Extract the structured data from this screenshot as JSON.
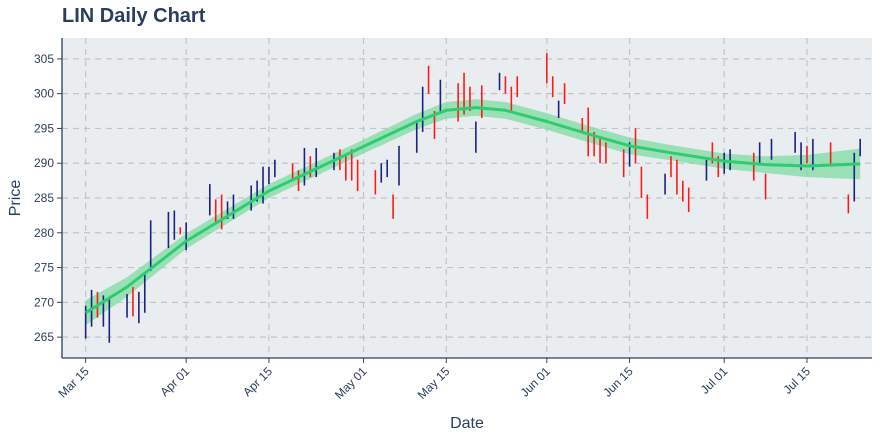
{
  "chart_data": {
    "type": "ohlc",
    "title": "LIN Daily Chart",
    "xlabel": "Date",
    "ylabel": "Price",
    "xlim": [
      "2021-03-11",
      "2021-07-26"
    ],
    "ylim": [
      262,
      308
    ],
    "grid": true,
    "legend": "none",
    "y_ticks": [
      265,
      270,
      275,
      280,
      285,
      290,
      295,
      300,
      305
    ],
    "x_ticks": [
      {
        "date": "2021-03-15",
        "label": "Mar 15"
      },
      {
        "date": "2021-04-01",
        "label": "Apr 01"
      },
      {
        "date": "2021-04-15",
        "label": "Apr 15"
      },
      {
        "date": "2021-05-01",
        "label": "May 01"
      },
      {
        "date": "2021-05-15",
        "label": "May 15"
      },
      {
        "date": "2021-06-01",
        "label": "Jun 01"
      },
      {
        "date": "2021-06-15",
        "label": "Jun 15"
      },
      {
        "date": "2021-07-01",
        "label": "Jul 01"
      },
      {
        "date": "2021-07-15",
        "label": "Jul 15"
      }
    ],
    "colors": {
      "up": "#1a237e",
      "down": "#ff1a1a",
      "trend": "#2ecc71",
      "band": "#7ddba4",
      "plot_bg": "#e9edf0",
      "grid": "#bfc5ca",
      "axis_text": "#2a3f5f"
    },
    "bars": [
      {
        "date": "2021-03-15",
        "low": 264.8,
        "high": 269.5,
        "dir": "up"
      },
      {
        "date": "2021-03-16",
        "low": 266.5,
        "high": 271.8,
        "dir": "up"
      },
      {
        "date": "2021-03-17",
        "low": 267.8,
        "high": 271.5,
        "dir": "down"
      },
      {
        "date": "2021-03-18",
        "low": 266.5,
        "high": 271.0,
        "dir": "up"
      },
      {
        "date": "2021-03-19",
        "low": 264.2,
        "high": 270.5,
        "dir": "up"
      },
      {
        "date": "2021-03-22",
        "low": 267.8,
        "high": 271.2,
        "dir": "up"
      },
      {
        "date": "2021-03-23",
        "low": 268.0,
        "high": 272.2,
        "dir": "down"
      },
      {
        "date": "2021-03-24",
        "low": 267.0,
        "high": 271.5,
        "dir": "up"
      },
      {
        "date": "2021-03-25",
        "low": 268.5,
        "high": 274.0,
        "dir": "up"
      },
      {
        "date": "2021-03-26",
        "low": 274.5,
        "high": 281.8,
        "dir": "up"
      },
      {
        "date": "2021-03-29",
        "low": 277.8,
        "high": 283.0,
        "dir": "up"
      },
      {
        "date": "2021-03-30",
        "low": 279.0,
        "high": 283.2,
        "dir": "up"
      },
      {
        "date": "2021-03-31",
        "low": 279.8,
        "high": 280.8,
        "dir": "down"
      },
      {
        "date": "2021-04-01",
        "low": 277.5,
        "high": 281.5,
        "dir": "up"
      },
      {
        "date": "2021-04-05",
        "low": 282.5,
        "high": 287.0,
        "dir": "up"
      },
      {
        "date": "2021-04-06",
        "low": 281.2,
        "high": 284.8,
        "dir": "down"
      },
      {
        "date": "2021-04-07",
        "low": 280.5,
        "high": 285.5,
        "dir": "down"
      },
      {
        "date": "2021-04-08",
        "low": 282.0,
        "high": 284.5,
        "dir": "up"
      },
      {
        "date": "2021-04-09",
        "low": 282.0,
        "high": 285.5,
        "dir": "up"
      },
      {
        "date": "2021-04-12",
        "low": 283.2,
        "high": 286.8,
        "dir": "up"
      },
      {
        "date": "2021-04-13",
        "low": 284.5,
        "high": 287.5,
        "dir": "up"
      },
      {
        "date": "2021-04-14",
        "low": 284.2,
        "high": 289.5,
        "dir": "up"
      },
      {
        "date": "2021-04-15",
        "low": 287.0,
        "high": 289.5,
        "dir": "up"
      },
      {
        "date": "2021-04-16",
        "low": 288.0,
        "high": 290.5,
        "dir": "up"
      },
      {
        "date": "2021-04-19",
        "low": 287.5,
        "high": 290.0,
        "dir": "down"
      },
      {
        "date": "2021-04-20",
        "low": 286.0,
        "high": 289.0,
        "dir": "down"
      },
      {
        "date": "2021-04-21",
        "low": 286.8,
        "high": 292.2,
        "dir": "up"
      },
      {
        "date": "2021-04-22",
        "low": 288.0,
        "high": 291.0,
        "dir": "down"
      },
      {
        "date": "2021-04-23",
        "low": 288.0,
        "high": 292.2,
        "dir": "up"
      },
      {
        "date": "2021-04-26",
        "low": 289.0,
        "high": 291.5,
        "dir": "up"
      },
      {
        "date": "2021-04-27",
        "low": 289.0,
        "high": 292.0,
        "dir": "down"
      },
      {
        "date": "2021-04-28",
        "low": 287.5,
        "high": 291.0,
        "dir": "down"
      },
      {
        "date": "2021-04-29",
        "low": 287.5,
        "high": 292.0,
        "dir": "down"
      },
      {
        "date": "2021-04-30",
        "low": 286.0,
        "high": 290.5,
        "dir": "down"
      },
      {
        "date": "2021-05-03",
        "low": 285.5,
        "high": 289.0,
        "dir": "down"
      },
      {
        "date": "2021-05-04",
        "low": 287.2,
        "high": 290.0,
        "dir": "up"
      },
      {
        "date": "2021-05-05",
        "low": 288.0,
        "high": 290.5,
        "dir": "up"
      },
      {
        "date": "2021-05-06",
        "low": 282.0,
        "high": 285.5,
        "dir": "down"
      },
      {
        "date": "2021-05-07",
        "low": 286.8,
        "high": 292.5,
        "dir": "up"
      },
      {
        "date": "2021-05-10",
        "low": 291.5,
        "high": 296.2,
        "dir": "up"
      },
      {
        "date": "2021-05-11",
        "low": 294.5,
        "high": 301.0,
        "dir": "up"
      },
      {
        "date": "2021-05-12",
        "low": 300.0,
        "high": 304.0,
        "dir": "down"
      },
      {
        "date": "2021-05-13",
        "low": 293.5,
        "high": 297.5,
        "dir": "down"
      },
      {
        "date": "2021-05-14",
        "low": 297.5,
        "high": 302.0,
        "dir": "up"
      },
      {
        "date": "2021-05-17",
        "low": 296.0,
        "high": 301.5,
        "dir": "down"
      },
      {
        "date": "2021-05-18",
        "low": 297.0,
        "high": 303.0,
        "dir": "down"
      },
      {
        "date": "2021-05-19",
        "low": 297.5,
        "high": 301.0,
        "dir": "down"
      },
      {
        "date": "2021-05-20",
        "low": 291.5,
        "high": 296.0,
        "dir": "up"
      },
      {
        "date": "2021-05-21",
        "low": 296.5,
        "high": 301.2,
        "dir": "down"
      },
      {
        "date": "2021-05-24",
        "low": 300.5,
        "high": 303.0,
        "dir": "up"
      },
      {
        "date": "2021-05-25",
        "low": 300.0,
        "high": 302.5,
        "dir": "down"
      },
      {
        "date": "2021-05-26",
        "low": 297.5,
        "high": 301.0,
        "dir": "down"
      },
      {
        "date": "2021-05-27",
        "low": 299.5,
        "high": 302.5,
        "dir": "down"
      },
      {
        "date": "2021-06-01",
        "low": 301.5,
        "high": 305.8,
        "dir": "down"
      },
      {
        "date": "2021-06-02",
        "low": 299.5,
        "high": 302.5,
        "dir": "down"
      },
      {
        "date": "2021-06-03",
        "low": 296.5,
        "high": 299.0,
        "dir": "up"
      },
      {
        "date": "2021-06-04",
        "low": 298.5,
        "high": 301.5,
        "dir": "down"
      },
      {
        "date": "2021-06-07",
        "low": 294.5,
        "high": 296.5,
        "dir": "down"
      },
      {
        "date": "2021-06-08",
        "low": 291.0,
        "high": 298.0,
        "dir": "down"
      },
      {
        "date": "2021-06-09",
        "low": 291.0,
        "high": 294.5,
        "dir": "down"
      },
      {
        "date": "2021-06-10",
        "low": 290.0,
        "high": 293.5,
        "dir": "down"
      },
      {
        "date": "2021-06-11",
        "low": 290.0,
        "high": 293.0,
        "dir": "down"
      },
      {
        "date": "2021-06-14",
        "low": 288.0,
        "high": 292.0,
        "dir": "down"
      },
      {
        "date": "2021-06-15",
        "low": 289.5,
        "high": 293.0,
        "dir": "up"
      },
      {
        "date": "2021-06-16",
        "low": 290.0,
        "high": 295.0,
        "dir": "down"
      },
      {
        "date": "2021-06-17",
        "low": 285.0,
        "high": 289.5,
        "dir": "down"
      },
      {
        "date": "2021-06-18",
        "low": 282.0,
        "high": 285.5,
        "dir": "down"
      },
      {
        "date": "2021-06-21",
        "low": 285.5,
        "high": 288.5,
        "dir": "up"
      },
      {
        "date": "2021-06-22",
        "low": 288.0,
        "high": 291.0,
        "dir": "down"
      },
      {
        "date": "2021-06-23",
        "low": 285.5,
        "high": 290.5,
        "dir": "down"
      },
      {
        "date": "2021-06-24",
        "low": 284.5,
        "high": 287.5,
        "dir": "down"
      },
      {
        "date": "2021-06-25",
        "low": 283.0,
        "high": 286.5,
        "dir": "down"
      },
      {
        "date": "2021-06-28",
        "low": 287.5,
        "high": 290.5,
        "dir": "up"
      },
      {
        "date": "2021-06-29",
        "low": 290.0,
        "high": 293.0,
        "dir": "down"
      },
      {
        "date": "2021-06-30",
        "low": 288.0,
        "high": 291.0,
        "dir": "down"
      },
      {
        "date": "2021-07-01",
        "low": 288.5,
        "high": 291.5,
        "dir": "up"
      },
      {
        "date": "2021-07-02",
        "low": 289.0,
        "high": 292.0,
        "dir": "up"
      },
      {
        "date": "2021-07-06",
        "low": 287.5,
        "high": 291.5,
        "dir": "down"
      },
      {
        "date": "2021-07-07",
        "low": 290.0,
        "high": 293.0,
        "dir": "up"
      },
      {
        "date": "2021-07-08",
        "low": 284.8,
        "high": 288.5,
        "dir": "down"
      },
      {
        "date": "2021-07-09",
        "low": 290.5,
        "high": 293.5,
        "dir": "up"
      },
      {
        "date": "2021-07-13",
        "low": 291.5,
        "high": 294.5,
        "dir": "up"
      },
      {
        "date": "2021-07-14",
        "low": 289.0,
        "high": 293.0,
        "dir": "up"
      },
      {
        "date": "2021-07-15",
        "low": 290.0,
        "high": 292.5,
        "dir": "down"
      },
      {
        "date": "2021-07-16",
        "low": 289.0,
        "high": 293.5,
        "dir": "up"
      },
      {
        "date": "2021-07-19",
        "low": 289.5,
        "high": 293.0,
        "dir": "down"
      },
      {
        "date": "2021-07-22",
        "low": 282.8,
        "high": 285.5,
        "dir": "down"
      },
      {
        "date": "2021-07-23",
        "low": 284.5,
        "high": 291.5,
        "dir": "up"
      },
      {
        "date": "2021-07-24",
        "low": 291.0,
        "high": 293.5,
        "dir": "up"
      }
    ],
    "trend": [
      {
        "date": "2021-03-15",
        "y": 268.5,
        "band": 1.8
      },
      {
        "date": "2021-03-22",
        "y": 272.2,
        "band": 1.4
      },
      {
        "date": "2021-04-01",
        "y": 278.8,
        "band": 1.1
      },
      {
        "date": "2021-04-15",
        "y": 286.0,
        "band": 1.0
      },
      {
        "date": "2021-05-01",
        "y": 292.4,
        "band": 1.0
      },
      {
        "date": "2021-05-10",
        "y": 296.0,
        "band": 1.1
      },
      {
        "date": "2021-05-15",
        "y": 297.6,
        "band": 1.2
      },
      {
        "date": "2021-05-20",
        "y": 298.0,
        "band": 1.2
      },
      {
        "date": "2021-05-25",
        "y": 297.6,
        "band": 1.2
      },
      {
        "date": "2021-06-01",
        "y": 296.0,
        "band": 1.2
      },
      {
        "date": "2021-06-08",
        "y": 294.2,
        "band": 1.2
      },
      {
        "date": "2021-06-15",
        "y": 292.5,
        "band": 1.2
      },
      {
        "date": "2021-06-22",
        "y": 291.5,
        "band": 1.1
      },
      {
        "date": "2021-07-01",
        "y": 290.3,
        "band": 1.1
      },
      {
        "date": "2021-07-08",
        "y": 289.8,
        "band": 1.2
      },
      {
        "date": "2021-07-15",
        "y": 289.6,
        "band": 1.6
      },
      {
        "date": "2021-07-24",
        "y": 289.9,
        "band": 2.2
      }
    ]
  }
}
